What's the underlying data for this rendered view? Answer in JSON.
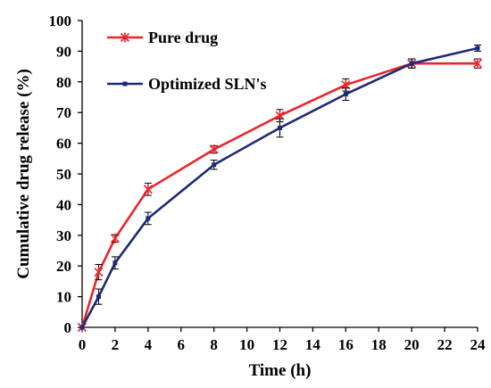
{
  "chart_data": {
    "type": "line",
    "title": "",
    "xlabel": "Time (h)",
    "ylabel": "Cumulative drug release (%)",
    "xlim": [
      0,
      24
    ],
    "ylim": [
      0,
      100
    ],
    "xticks": [
      "0",
      "2",
      "4",
      "6",
      "8",
      "10",
      "12",
      "14",
      "16",
      "18",
      "20",
      "22",
      "24"
    ],
    "yticks": [
      "0",
      "10",
      "20",
      "30",
      "40",
      "50",
      "60",
      "70",
      "80",
      "90",
      "100"
    ],
    "grid": false,
    "legend_position": "top-left",
    "series": [
      {
        "name": "Pure drug",
        "color": "#e8262a",
        "marker": "asterisk",
        "x": [
          0,
          1,
          2,
          4,
          8,
          12,
          16,
          20,
          24
        ],
        "y": [
          0,
          18,
          29,
          45,
          58,
          69,
          79,
          86,
          86
        ],
        "err": [
          0,
          2.5,
          1.2,
          2.0,
          1.2,
          2.0,
          2.0,
          1.5,
          1.5
        ]
      },
      {
        "name": "Optimized SLN's",
        "color": "#1d2a78",
        "marker": "square",
        "x": [
          0,
          1,
          2,
          4,
          8,
          12,
          16,
          20,
          24
        ],
        "y": [
          0,
          10,
          21,
          35.5,
          53,
          65,
          76,
          86,
          91
        ],
        "err": [
          0,
          2.5,
          2.0,
          2.0,
          1.5,
          3.0,
          2.0,
          1.5,
          1.0
        ]
      }
    ]
  }
}
